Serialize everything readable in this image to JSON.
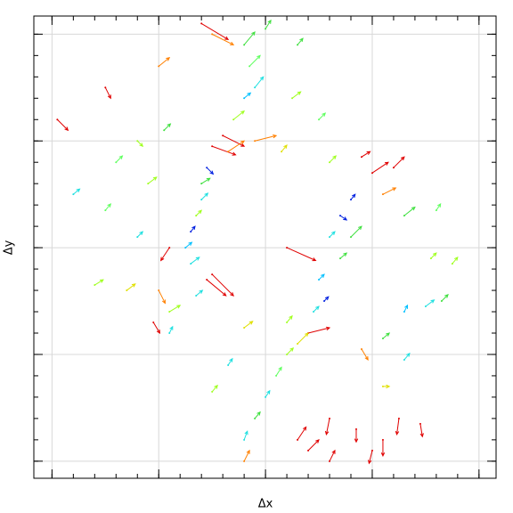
{
  "chart_data": {
    "type": "quiver",
    "xlabel": "Δx",
    "ylabel": "Δy",
    "xlim": [
      -2.17,
      2.16
    ],
    "ylim": [
      -2.16,
      2.17
    ],
    "xticks": [
      -2,
      -1,
      0,
      1,
      2
    ],
    "yticks": [
      -2,
      -1,
      0,
      1,
      2
    ],
    "minor_xticks": [
      -2.0,
      -1.8,
      -1.6,
      -1.4,
      -1.2,
      -1.0,
      -0.8,
      -0.6,
      -0.4,
      -0.2,
      0.0,
      0.2,
      0.4,
      0.6,
      0.8,
      1.0,
      1.2,
      1.4,
      1.6,
      1.8,
      2.0
    ],
    "minor_yticks": [
      -2.0,
      -1.8,
      -1.6,
      -1.4,
      -1.2,
      -1.0,
      -0.8,
      -0.6,
      -0.4,
      -0.2,
      0.0,
      0.2,
      0.4,
      0.6,
      0.8,
      1.0,
      1.2,
      1.4,
      1.6,
      1.8,
      2.0
    ],
    "grid": true,
    "x": [
      -0.6,
      -0.5,
      -0.2,
      -0.15,
      -0.1,
      -0.2,
      -0.3,
      -0.4,
      -0.5,
      -0.35,
      -0.55,
      -0.6,
      -0.6,
      -0.65,
      -0.7,
      -0.75,
      -0.7,
      -0.55,
      -0.65,
      -0.9,
      -1.95,
      -1.5,
      -1.8,
      -1.5,
      -1.2,
      -1.3,
      -1.6,
      -1.0,
      -1.05,
      -0.9,
      -1.2,
      -0.95,
      -1.4,
      -1.1,
      -0.9,
      1.0,
      1.1,
      0.8,
      0.7,
      0.6,
      0.8,
      0.7,
      0.5,
      0.55,
      0.45,
      0.4,
      0.3,
      0.2,
      0.1,
      0.0,
      -0.1,
      -0.2,
      -0.2,
      0.3,
      0.4,
      0.6,
      0.85,
      0.6,
      1.0,
      1.1,
      1.25,
      1.45,
      0.2,
      -0.5,
      1.3,
      1.55,
      1.5,
      1.65,
      1.75,
      1.3,
      1.1,
      1.3,
      0.9,
      -0.5,
      -0.35,
      -0.2,
      0.2,
      1.1,
      -1.0,
      0.25,
      0.5,
      0.6,
      0.15,
      0.3,
      0.0,
      -0.1,
      1.2,
      0.9,
      1.6
    ],
    "y": [
      2.1,
      2.0,
      1.9,
      1.7,
      1.5,
      1.4,
      1.2,
      1.05,
      0.95,
      0.9,
      0.75,
      0.6,
      0.45,
      0.3,
      0.15,
      0.0,
      -0.15,
      -0.3,
      -0.45,
      -0.6,
      1.2,
      1.5,
      0.5,
      0.35,
      0.1,
      -0.4,
      -0.35,
      -0.4,
      -0.7,
      -0.8,
      1.0,
      1.1,
      0.8,
      0.6,
      0.0,
      0.7,
      0.5,
      0.45,
      0.3,
      0.1,
      0.1,
      -0.1,
      -0.3,
      -0.5,
      -0.6,
      -0.8,
      -0.9,
      -1.0,
      -1.2,
      -1.4,
      -1.6,
      -1.8,
      -2.0,
      -1.8,
      -1.9,
      -1.6,
      -1.7,
      -2.0,
      -1.9,
      -1.8,
      -1.6,
      -1.65,
      0.0,
      -0.25,
      0.3,
      -0.1,
      -0.55,
      -0.5,
      -0.15,
      -1.05,
      -1.3,
      -0.6,
      -0.95,
      -1.35,
      -1.1,
      -0.75,
      -0.7,
      -0.85,
      1.7,
      1.4,
      1.2,
      0.8,
      0.9,
      1.9,
      2.05,
      1.0,
      0.75,
      0.85,
      0.35
    ],
    "u": [
      0.25,
      0.2,
      0.1,
      0.1,
      0.08,
      0.06,
      0.1,
      0.2,
      0.22,
      0.15,
      0.06,
      0.08,
      0.06,
      0.05,
      0.04,
      0.06,
      0.08,
      0.18,
      0.06,
      0.1,
      0.1,
      0.05,
      0.06,
      0.05,
      0.05,
      0.08,
      0.08,
      0.06,
      0.06,
      0.03,
      0.05,
      0.06,
      0.06,
      0.08,
      -0.08,
      0.15,
      0.12,
      0.04,
      0.06,
      0.05,
      0.1,
      0.06,
      0.05,
      0.04,
      0.05,
      0.2,
      0.1,
      0.06,
      0.05,
      0.04,
      0.05,
      0.03,
      0.05,
      0.08,
      0.1,
      -0.03,
      0.0,
      0.05,
      -0.03,
      0.0,
      -0.02,
      0.02,
      0.27,
      0.2,
      0.1,
      0.05,
      0.08,
      0.06,
      0.05,
      0.05,
      0.06,
      0.03,
      0.06,
      0.05,
      0.04,
      0.08,
      0.05,
      0.06,
      0.1,
      0.08,
      0.06,
      0.06,
      0.05,
      0.05,
      0.05,
      0.2,
      0.1,
      0.08,
      0.04
    ],
    "v": [
      -0.15,
      -0.1,
      0.12,
      0.1,
      0.1,
      0.05,
      0.08,
      -0.1,
      -0.08,
      0.1,
      -0.06,
      0.05,
      0.06,
      0.05,
      0.05,
      0.05,
      0.06,
      -0.15,
      0.05,
      0.06,
      -0.1,
      -0.1,
      0.05,
      0.06,
      0.05,
      0.06,
      0.05,
      -0.12,
      -0.1,
      0.06,
      -0.05,
      0.06,
      0.06,
      0.06,
      -0.12,
      0.1,
      0.06,
      0.05,
      -0.04,
      0.05,
      0.1,
      0.05,
      0.05,
      0.04,
      0.05,
      0.05,
      0.1,
      0.06,
      0.08,
      0.06,
      0.06,
      0.08,
      0.1,
      0.12,
      0.1,
      -0.15,
      -0.12,
      0.1,
      -0.12,
      -0.15,
      -0.15,
      -0.12,
      -0.12,
      -0.2,
      0.08,
      0.05,
      0.06,
      0.06,
      0.06,
      0.06,
      0.0,
      0.06,
      -0.1,
      0.06,
      0.06,
      0.06,
      0.06,
      0.05,
      0.08,
      0.06,
      0.06,
      0.06,
      0.06,
      0.06,
      0.08,
      0.05,
      0.1,
      0.05,
      0.06
    ],
    "colors": [
      "#e00000",
      "#ff8000",
      "#40e040",
      "#60ff60",
      "#20e0e0",
      "#00c0ff",
      "#a0ff20",
      "#e00000",
      "#e00000",
      "#ff8000",
      "#0020e0",
      "#40e040",
      "#20e0e0",
      "#a0ff20",
      "#0020e0",
      "#00c0ff",
      "#20e0e0",
      "#e00000",
      "#20e0e0",
      "#a0ff20",
      "#e00000",
      "#e00000",
      "#20e0e0",
      "#60ff60",
      "#20e0e0",
      "#e0e000",
      "#a0ff20",
      "#ff8000",
      "#e00000",
      "#20e0e0",
      "#a0ff20",
      "#40e040",
      "#60ff60",
      "#a0ff20",
      "#e00000",
      "#e00000",
      "#ff8000",
      "#0020e0",
      "#0020e0",
      "#20e0e0",
      "#40e040",
      "#40e040",
      "#00c0ff",
      "#0020e0",
      "#20e0e0",
      "#e00000",
      "#e0e000",
      "#a0ff20",
      "#60ff60",
      "#20e0e0",
      "#40e040",
      "#20e0e0",
      "#ff8000",
      "#e00000",
      "#e00000",
      "#e00000",
      "#e00000",
      "#e00000",
      "#e00000",
      "#e00000",
      "#e00000",
      "#e00000",
      "#e00000",
      "#e00000",
      "#40e040",
      "#a0ff20",
      "#20e0e0",
      "#40e040",
      "#a0ff20",
      "#20e0e0",
      "#e0e000",
      "#00c0ff",
      "#ff8000",
      "#a0ff20",
      "#20e0e0",
      "#e0e000",
      "#a0ff20",
      "#40e040",
      "#ff8000",
      "#a0ff20",
      "#60ff60",
      "#a0ff20",
      "#e0e000",
      "#40e040",
      "#40e040",
      "#ff8000",
      "#e00000",
      "#e00000",
      "#60ff60"
    ]
  }
}
